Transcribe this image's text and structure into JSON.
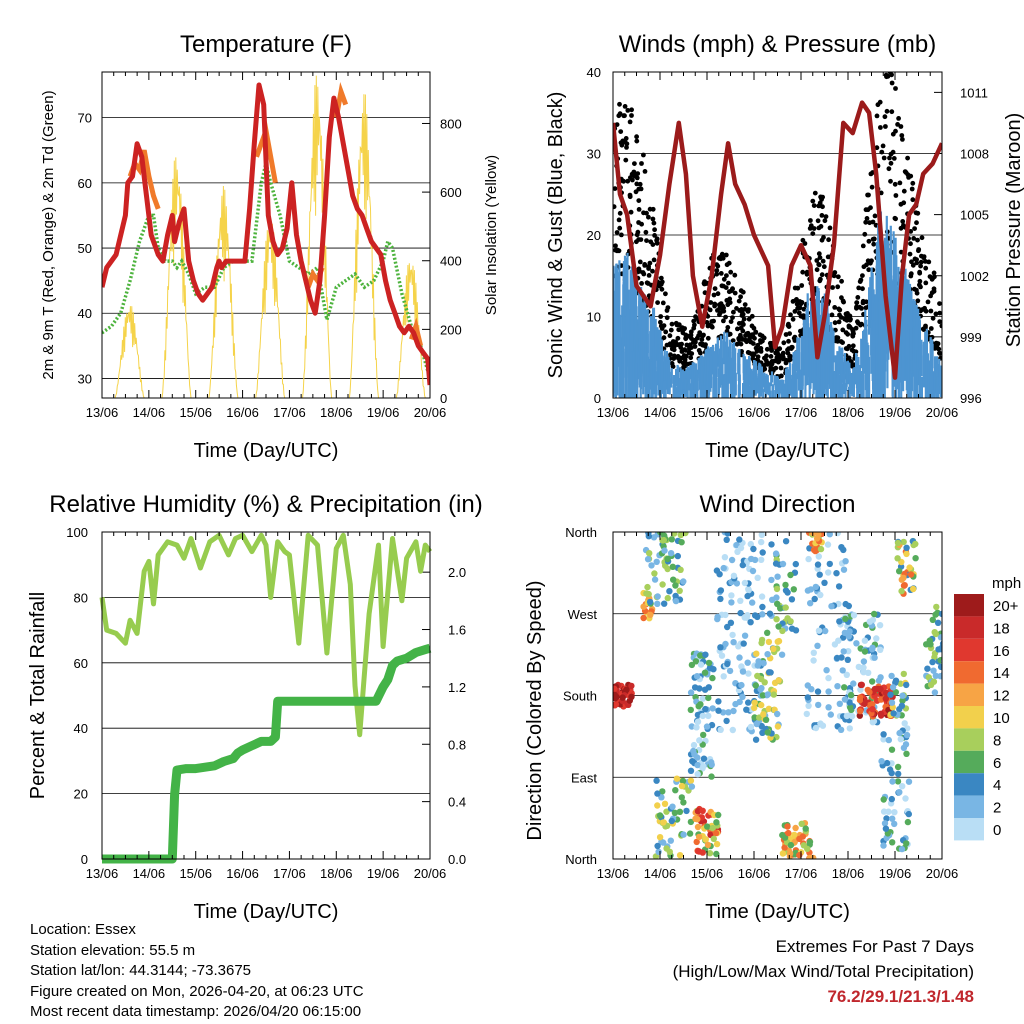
{
  "chart_data": [
    {
      "type": "line",
      "title": "Temperature (F)",
      "xlabel": "Time (Day/UTC)",
      "ylabel": "2m & 9m T (Red, Orange) & 2m Td (Green)",
      "y2label": "Solar Insolation (Yellow)",
      "xticks": [
        "13/06",
        "14/06",
        "15/06",
        "16/06",
        "17/06",
        "18/06",
        "19/06",
        "20/06"
      ],
      "ylim": [
        27,
        77
      ],
      "yticks": [
        30,
        40,
        50,
        60,
        70
      ],
      "y2lim": [
        0,
        950
      ],
      "y2ticks": [
        0,
        200,
        400,
        600,
        800
      ],
      "grid": true,
      "series": [
        {
          "name": "2m Temperature",
          "color": "#cc2222",
          "x": [
            0,
            0.1,
            0.3,
            0.5,
            0.55,
            0.65,
            0.75,
            0.85,
            0.95,
            1.05,
            1.2,
            1.3,
            1.4,
            1.5,
            1.55,
            1.65,
            1.75,
            1.85,
            1.95,
            2.05,
            2.15,
            2.25,
            2.35,
            2.45,
            2.5,
            2.55,
            2.65,
            2.75,
            2.85,
            2.95,
            3.05,
            3.15,
            3.25,
            3.35,
            3.45,
            3.55,
            3.65,
            3.75,
            3.85,
            3.95,
            4.05,
            4.15,
            4.25,
            4.35,
            4.45,
            4.55,
            4.65,
            4.75,
            4.85,
            4.95,
            5.05,
            5.15,
            5.25,
            5.35,
            5.45,
            5.55,
            5.65,
            5.75,
            5.85,
            5.95,
            6.05,
            6.15,
            6.25,
            6.35,
            6.45,
            6.55,
            6.65,
            6.75,
            6.85,
            6.95,
            7.0
          ],
          "y": [
            44,
            47,
            49,
            55,
            60,
            61,
            66,
            64,
            58,
            52,
            49,
            48,
            52,
            55,
            51,
            54,
            56,
            48,
            45,
            43,
            42,
            43,
            44,
            47,
            48,
            47,
            48,
            48,
            48,
            48,
            48,
            56,
            66,
            75,
            72,
            55,
            51,
            49,
            50,
            53,
            60,
            52,
            48,
            45,
            42,
            40,
            45,
            55,
            67,
            73,
            70,
            66,
            62,
            58,
            56,
            55,
            53,
            51,
            50,
            49,
            45,
            42,
            40,
            38,
            37,
            38,
            37,
            35,
            34,
            33,
            29
          ]
        },
        {
          "name": "9m Temperature",
          "color": "#f07a2a",
          "x": [
            0.6,
            0.7,
            0.8,
            0.9,
            1.0,
            1.1,
            1.2,
            3.3,
            3.4,
            3.5,
            3.6,
            3.7,
            4.4,
            4.5,
            4.6,
            4.7,
            5.0,
            5.1,
            5.2,
            6.6,
            6.7,
            6.8
          ],
          "y": [
            61,
            63,
            62,
            65,
            61,
            58,
            56,
            64,
            66,
            68,
            64,
            60,
            44,
            46,
            45,
            47,
            70,
            74,
            72,
            36,
            38,
            35
          ]
        },
        {
          "name": "2m Dewpoint",
          "color": "#4db33d",
          "x": [
            0,
            0.2,
            0.4,
            0.6,
            0.8,
            1.0,
            1.1,
            1.2,
            1.35,
            1.5,
            1.6,
            1.7,
            1.85,
            2.0,
            2.2,
            2.4,
            2.6,
            2.8,
            3.0,
            3.2,
            3.4,
            3.5,
            3.6,
            3.8,
            4.0,
            4.2,
            4.4,
            4.6,
            4.8,
            5.0,
            5.2,
            5.4,
            5.6,
            5.8,
            6.0,
            6.1,
            6.2,
            6.4,
            6.6,
            6.8,
            7.0
          ],
          "y": [
            37,
            38,
            40,
            45,
            51,
            55,
            55,
            50,
            48,
            48,
            47,
            48,
            46,
            43,
            44,
            44,
            47,
            48,
            48,
            48,
            60,
            63,
            60,
            55,
            48,
            47,
            46,
            47,
            39,
            44,
            45,
            46,
            44,
            45,
            48,
            51,
            50,
            43,
            38,
            35,
            30
          ]
        }
      ],
      "insolation": {
        "name": "Solar Insolation",
        "color": "#f5d34a",
        "days": [
          0,
          1,
          2,
          3,
          4,
          5,
          6
        ],
        "peaks": [
          280,
          720,
          620,
          540,
          950,
          900,
          420
        ]
      }
    },
    {
      "type": "scatter",
      "title": "Winds (mph) & Pressure (mb)",
      "xlabel": "Time (Day/UTC)",
      "ylabel": "Sonic Wind & Gust (Blue, Black)",
      "y2label": "Station Pressure (Maroon)",
      "xticks": [
        "13/06",
        "14/06",
        "15/06",
        "16/06",
        "17/06",
        "18/06",
        "19/06",
        "20/06"
      ],
      "ylim": [
        0,
        40
      ],
      "yticks": [
        0,
        10,
        20,
        30,
        40
      ],
      "y2lim": [
        996,
        1012
      ],
      "y2ticks": [
        996,
        999,
        1002,
        1005,
        1008,
        1011
      ],
      "grid": true,
      "series": [
        {
          "name": "Sonic Wind",
          "color": "#4d94d1",
          "x": [
            0,
            0.3,
            0.6,
            0.9,
            1.2,
            1.5,
            1.8,
            2.1,
            2.4,
            2.7,
            3.0,
            3.3,
            3.6,
            3.9,
            4.2,
            4.5,
            4.8,
            5.1,
            5.4,
            5.7,
            6.0,
            6.3,
            6.6,
            6.9,
            7.0
          ],
          "y": [
            14,
            15,
            12,
            9,
            4,
            3,
            4,
            6,
            7,
            5,
            4,
            3,
            2,
            6,
            12,
            11,
            6,
            3,
            10,
            20,
            17,
            12,
            8,
            5,
            3
          ]
        },
        {
          "name": "Gust",
          "color": "#000000",
          "x": [
            0,
            0.3,
            0.6,
            0.9,
            1.2,
            1.5,
            1.8,
            2.1,
            2.4,
            2.7,
            3.0,
            3.3,
            3.6,
            3.9,
            4.2,
            4.5,
            4.8,
            5.1,
            5.4,
            5.7,
            6.0,
            6.3,
            6.6,
            6.9,
            7.0
          ],
          "y": [
            24,
            26,
            22,
            15,
            7,
            6,
            8,
            12,
            13,
            10,
            7,
            5,
            4,
            10,
            18,
            17,
            11,
            6,
            17,
            30,
            27,
            20,
            14,
            10,
            6
          ]
        },
        {
          "name": "Station Pressure",
          "color": "#9b1b1b",
          "x": [
            0,
            0.15,
            0.3,
            0.5,
            0.8,
            1.0,
            1.2,
            1.4,
            1.55,
            1.7,
            1.9,
            2.1,
            2.3,
            2.45,
            2.6,
            2.8,
            3.0,
            3.3,
            3.45,
            3.6,
            3.8,
            4.0,
            4.2,
            4.35,
            4.5,
            4.7,
            4.9,
            5.1,
            5.3,
            5.45,
            5.6,
            5.8,
            6.0,
            6.15,
            6.3,
            6.45,
            6.6,
            6.8,
            7.0
          ],
          "y": [
            1009.5,
            1006,
            1005,
            1001.5,
            1000.5,
            1003,
            1006.5,
            1009.5,
            1007,
            1002,
            999.5,
            1002,
            1006,
            1008.5,
            1006.5,
            1005.5,
            1004,
            1002.5,
            998.5,
            999.5,
            1002.5,
            1003.5,
            1002.5,
            998,
            1000,
            1003.5,
            1009.5,
            1009,
            1010.5,
            1010,
            1007,
            1001,
            997,
            1002,
            1005,
            1005.5,
            1007,
            1007.5,
            1008.5
          ]
        }
      ]
    },
    {
      "type": "line",
      "title": "Relative Humidity (%) & Precipitation (in)",
      "xlabel": "Time (Day/UTC)",
      "ylabel": "Percent & Total Rainfall",
      "xticks": [
        "13/06",
        "14/06",
        "15/06",
        "16/06",
        "17/06",
        "18/06",
        "19/06",
        "20/06"
      ],
      "ylim": [
        0,
        100
      ],
      "yticks": [
        0,
        20,
        40,
        60,
        80,
        100
      ],
      "y2lim": [
        0,
        2.28
      ],
      "y2ticks": [
        "0.0",
        "0.4",
        "0.8",
        "1.2",
        "1.6",
        "2.0"
      ],
      "grid": true,
      "series": [
        {
          "name": "Relative Humidity",
          "color": "#97cc4f",
          "x": [
            0,
            0.1,
            0.3,
            0.5,
            0.6,
            0.75,
            0.9,
            1.0,
            1.1,
            1.2,
            1.4,
            1.6,
            1.75,
            1.9,
            2.1,
            2.3,
            2.5,
            2.7,
            2.85,
            3.0,
            3.2,
            3.4,
            3.5,
            3.6,
            3.75,
            3.9,
            4.0,
            4.2,
            4.4,
            4.6,
            4.8,
            5.0,
            5.15,
            5.3,
            5.4,
            5.5,
            5.7,
            5.9,
            6.0,
            6.2,
            6.4,
            6.5,
            6.7,
            6.8,
            6.9,
            7.0
          ],
          "y": [
            80,
            70,
            69,
            66,
            73,
            69,
            88,
            91,
            78,
            93,
            97,
            96,
            92,
            98,
            89,
            97,
            99,
            93,
            98,
            99,
            94,
            99,
            96,
            80,
            97,
            94,
            93,
            66,
            99,
            96,
            63,
            95,
            99,
            84,
            53,
            38,
            75,
            96,
            65,
            98,
            79,
            92,
            97,
            88,
            96,
            94
          ]
        },
        {
          "name": "Total Precipitation",
          "color": "#43b347",
          "x": [
            0,
            1.5,
            1.55,
            1.6,
            1.8,
            2.0,
            2.2,
            2.4,
            2.6,
            2.8,
            2.9,
            3.0,
            3.2,
            3.4,
            3.6,
            3.7,
            3.75,
            3.9,
            4.2,
            4.5,
            4.8,
            5.0,
            5.3,
            5.6,
            5.8,
            5.85,
            6.0,
            6.1,
            6.2,
            6.3,
            6.5,
            6.7,
            6.9,
            7.0
          ],
          "y": [
            0,
            0,
            0.45,
            0.62,
            0.63,
            0.63,
            0.64,
            0.65,
            0.68,
            0.7,
            0.74,
            0.76,
            0.79,
            0.82,
            0.82,
            0.85,
            1.1,
            1.1,
            1.1,
            1.1,
            1.1,
            1.1,
            1.1,
            1.1,
            1.1,
            1.1,
            1.2,
            1.25,
            1.35,
            1.38,
            1.4,
            1.44,
            1.46,
            1.47
          ]
        }
      ]
    },
    {
      "type": "scatter",
      "title": "Wind Direction",
      "xlabel": "Time (Day/UTC)",
      "ylabel": "Direction (Colored By Speed)",
      "xticks": [
        "13/06",
        "14/06",
        "15/06",
        "16/06",
        "17/06",
        "18/06",
        "19/06",
        "20/06"
      ],
      "yticks": [
        "North",
        "East",
        "South",
        "West",
        "North"
      ],
      "ylim": [
        0,
        360
      ],
      "colorbar": {
        "unit": "mph",
        "labels": [
          "20+",
          "18",
          "16",
          "14",
          "12",
          "10",
          "8",
          "6",
          "4",
          "2",
          "0"
        ],
        "colors": [
          "#9e1b1b",
          "#c92a2a",
          "#e0382f",
          "#f06a30",
          "#f7a445",
          "#f2d04c",
          "#a8cf5c",
          "#55ab5b",
          "#3a87c2",
          "#79b6e4",
          "#b9def5"
        ]
      }
    }
  ],
  "footer": {
    "location": "Location: Essex",
    "elevation": "Station elevation: 55.5 m",
    "latlon": "Station lat/lon: 44.3144; -73.3675",
    "created": "Figure created on Mon, 2026-04-20, at 06:23 UTC",
    "recent": "Most recent data timestamp: 2026/04/20 06:15:00",
    "extremes_title": "Extremes For Past 7 Days",
    "extremes_subtitle": "(High/Low/Max Wind/Total Precipitation)",
    "extremes_values": "76.2/29.1/21.3/1.48"
  }
}
